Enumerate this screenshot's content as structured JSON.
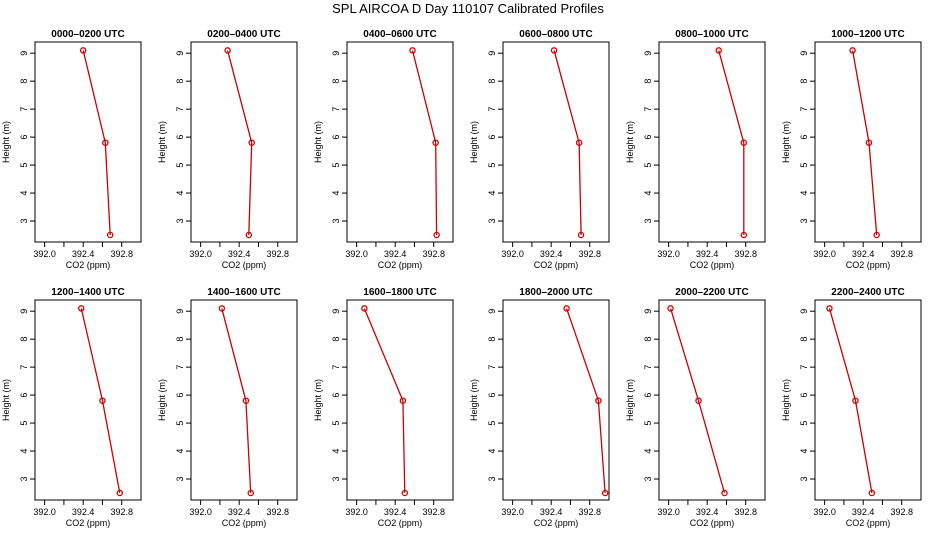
{
  "title": "SPL AIRCOA D  Day 110107  Calibrated Profiles",
  "chart_data": {
    "type": "line",
    "line_color": "#cc0000",
    "marker_color": "#cc0000",
    "xlabel": "CO2 (ppm)",
    "ylabel": "Height (m)",
    "xlim": [
      391.9,
      393.0
    ],
    "ylim": [
      2.25,
      9.4
    ],
    "x_ticks": [
      392.0,
      392.4,
      392.8
    ],
    "x_tick_labels": [
      "392.0",
      "392.4",
      "392.8"
    ],
    "x_minor_ticks": [
      392.2,
      392.6
    ],
    "y_ticks": [
      3,
      4,
      5,
      6,
      7,
      8,
      9
    ],
    "y_tick_labels": [
      "3",
      "4",
      "5",
      "6",
      "7",
      "8",
      "9"
    ],
    "heights": [
      9.1,
      5.8,
      2.5
    ],
    "panels": [
      {
        "title": "0000–0200 UTC",
        "co2": [
          392.4,
          392.63,
          392.68
        ]
      },
      {
        "title": "0200–0400 UTC",
        "co2": [
          392.28,
          392.53,
          392.5
        ]
      },
      {
        "title": "0400–0600 UTC",
        "co2": [
          392.58,
          392.82,
          392.83
        ]
      },
      {
        "title": "0600–0800 UTC",
        "co2": [
          392.43,
          392.69,
          392.71
        ]
      },
      {
        "title": "0800–1000 UTC",
        "co2": [
          392.52,
          392.78,
          392.78
        ]
      },
      {
        "title": "1000–1200 UTC",
        "co2": [
          392.29,
          392.46,
          392.54
        ]
      },
      {
        "title": "1200–1400 UTC",
        "co2": [
          392.38,
          392.6,
          392.78
        ]
      },
      {
        "title": "1400–1600 UTC",
        "co2": [
          392.22,
          392.47,
          392.52
        ]
      },
      {
        "title": "1600–1800 UTC",
        "co2": [
          392.08,
          392.48,
          392.5
        ]
      },
      {
        "title": "1800–2000 UTC",
        "co2": [
          392.56,
          392.89,
          392.96
        ]
      },
      {
        "title": "2000–2200 UTC",
        "co2": [
          392.02,
          392.31,
          392.58
        ]
      },
      {
        "title": "2200–2400 UTC",
        "co2": [
          392.05,
          392.32,
          392.49
        ]
      }
    ]
  }
}
